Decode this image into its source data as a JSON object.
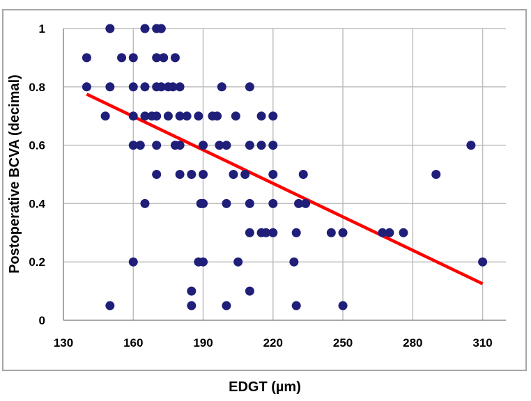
{
  "chart_data": {
    "type": "scatter",
    "title": "",
    "xlabel": "EDGT (µm)",
    "ylabel": "Postoperative BCVA (decimal)",
    "xlim": [
      130,
      320
    ],
    "ylim": [
      0,
      1
    ],
    "x_ticks": [
      "130",
      "160",
      "190",
      "220",
      "250",
      "280",
      "310"
    ],
    "y_ticks": [
      "0",
      "0.2",
      "0.4",
      "0.6",
      "0.8",
      "1"
    ],
    "grid": true,
    "legend": "none",
    "colors": {
      "points": "#1f1f7a",
      "trendline": "#ff0000",
      "grid": "#bfbfbf",
      "frame": "#a6a6a6"
    },
    "series": [
      {
        "type": "scatter",
        "points": [
          [
            140,
            0.9
          ],
          [
            140,
            0.8
          ],
          [
            148,
            0.7
          ],
          [
            150,
            1.0
          ],
          [
            150,
            0.8
          ],
          [
            150,
            0.05
          ],
          [
            155,
            0.9
          ],
          [
            160,
            0.9
          ],
          [
            160,
            0.8
          ],
          [
            160,
            0.7
          ],
          [
            160,
            0.6
          ],
          [
            160,
            0.2
          ],
          [
            163,
            0.6
          ],
          [
            165,
            1.0
          ],
          [
            165,
            0.8
          ],
          [
            165,
            0.7
          ],
          [
            165,
            0.4
          ],
          [
            168,
            0.7
          ],
          [
            170,
            1.0
          ],
          [
            170,
            0.9
          ],
          [
            170,
            0.8
          ],
          [
            170,
            0.7
          ],
          [
            170,
            0.6
          ],
          [
            170,
            0.5
          ],
          [
            172,
            1.0
          ],
          [
            172,
            0.8
          ],
          [
            173,
            0.9
          ],
          [
            175,
            0.8
          ],
          [
            175,
            0.7
          ],
          [
            177,
            0.8
          ],
          [
            178,
            0.9
          ],
          [
            178,
            0.6
          ],
          [
            180,
            0.8
          ],
          [
            180,
            0.7
          ],
          [
            180,
            0.6
          ],
          [
            180,
            0.5
          ],
          [
            183,
            0.7
          ],
          [
            185,
            0.5
          ],
          [
            185,
            0.1
          ],
          [
            185,
            0.05
          ],
          [
            188,
            0.7
          ],
          [
            188,
            0.2
          ],
          [
            189,
            0.4
          ],
          [
            190,
            0.6
          ],
          [
            190,
            0.5
          ],
          [
            190,
            0.4
          ],
          [
            190,
            0.2
          ],
          [
            194,
            0.7
          ],
          [
            196,
            0.7
          ],
          [
            197,
            0.6
          ],
          [
            198,
            0.8
          ],
          [
            200,
            0.6
          ],
          [
            200,
            0.4
          ],
          [
            200,
            0.05
          ],
          [
            203,
            0.5
          ],
          [
            204,
            0.7
          ],
          [
            205,
            0.2
          ],
          [
            208,
            0.5
          ],
          [
            210,
            0.8
          ],
          [
            210,
            0.6
          ],
          [
            210,
            0.4
          ],
          [
            210,
            0.3
          ],
          [
            210,
            0.1
          ],
          [
            215,
            0.7
          ],
          [
            215,
            0.6
          ],
          [
            215,
            0.3
          ],
          [
            217,
            0.3
          ],
          [
            220,
            0.7
          ],
          [
            220,
            0.6
          ],
          [
            220,
            0.5
          ],
          [
            220,
            0.4
          ],
          [
            220,
            0.3
          ],
          [
            229,
            0.2
          ],
          [
            230,
            0.3
          ],
          [
            230,
            0.05
          ],
          [
            231,
            0.4
          ],
          [
            233,
            0.5
          ],
          [
            234,
            0.4
          ],
          [
            245,
            0.3
          ],
          [
            250,
            0.3
          ],
          [
            250,
            0.05
          ],
          [
            267,
            0.3
          ],
          [
            270,
            0.3
          ],
          [
            276,
            0.3
          ],
          [
            290,
            0.5
          ],
          [
            305,
            0.6
          ],
          [
            310,
            0.2
          ]
        ]
      },
      {
        "type": "trendline",
        "points": [
          [
            140,
            0.775
          ],
          [
            310,
            0.125
          ]
        ]
      }
    ]
  }
}
